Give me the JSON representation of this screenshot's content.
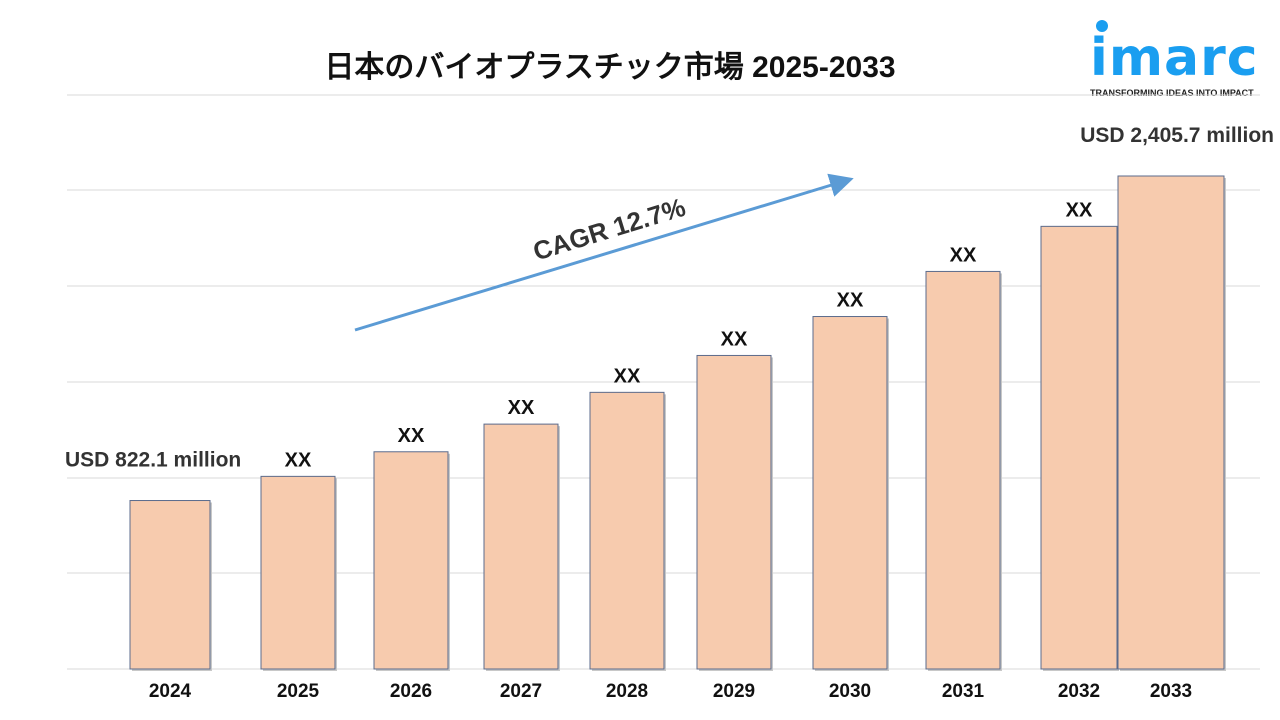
{
  "chart_data": {
    "type": "bar",
    "title": "日本のバイオプラスチック市場 2025-2033",
    "categories": [
      "2024",
      "2025",
      "2026",
      "2027",
      "2028",
      "2029",
      "2030",
      "2031",
      "2032",
      "2033"
    ],
    "values": [
      822.1,
      940,
      1060,
      1195,
      1350,
      1530,
      1720,
      1940,
      2160,
      2405.7
    ],
    "value_labels": [
      "USD 822.1 million",
      "XX",
      "XX",
      "XX",
      "XX",
      "XX",
      "XX",
      "XX",
      "XX",
      "USD 2,405.7 million"
    ],
    "annotation": "CAGR 12.7%",
    "ylim": [
      0,
      2800
    ],
    "grid": true,
    "bar_color": "#f7cbae",
    "bar_border": "#5b6b8c",
    "arrow_color": "#5b9bd5"
  },
  "logo": {
    "word": "imarc",
    "tagline": "TRANSFORMING IDEAS INTO IMPACT",
    "color": "#1a9ef0"
  }
}
